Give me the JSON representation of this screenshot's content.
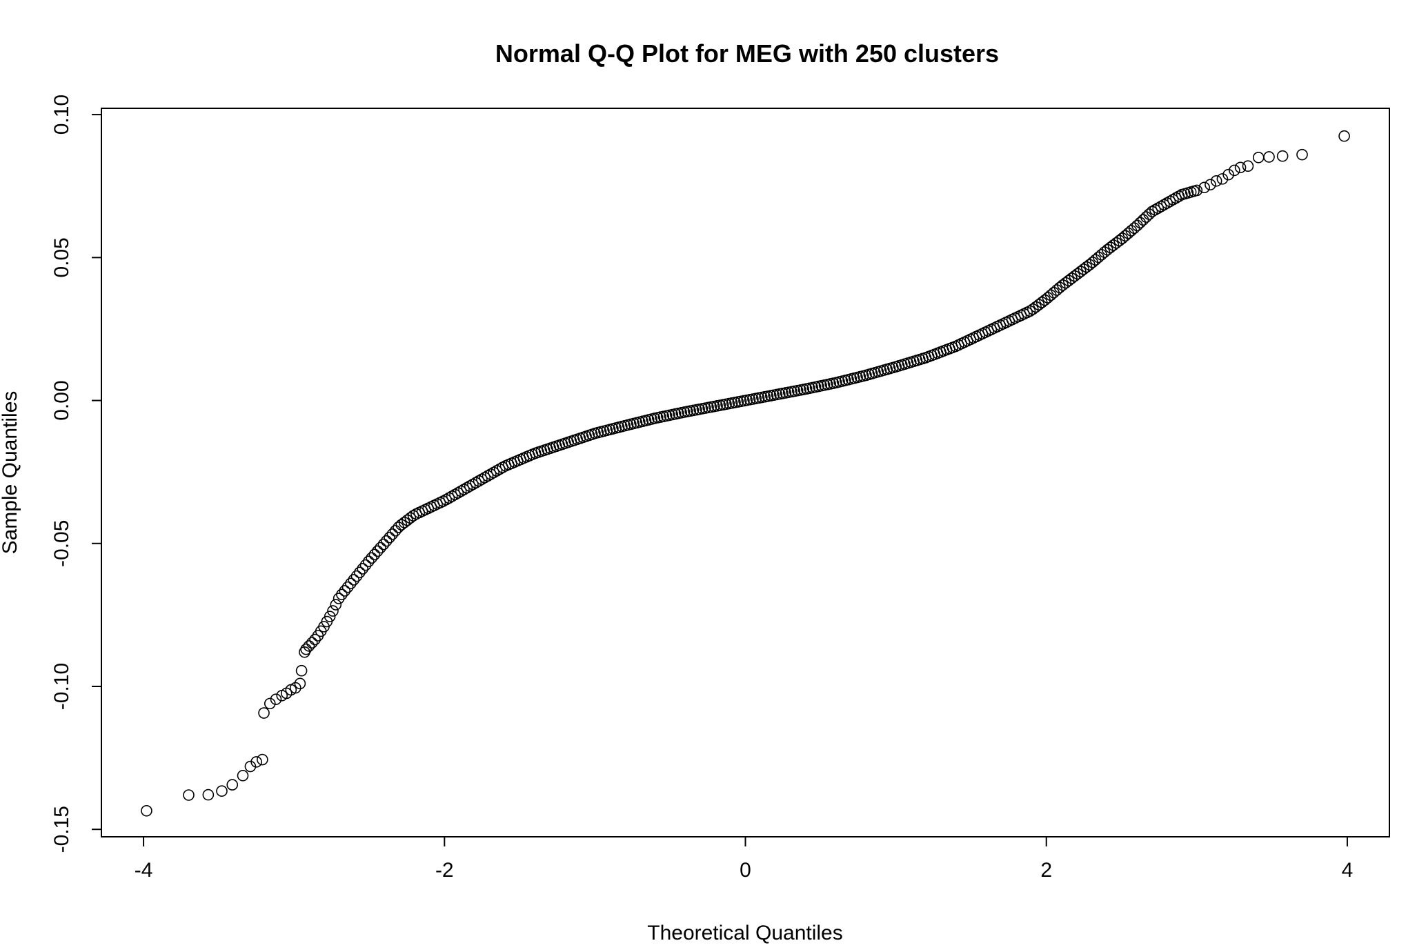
{
  "chart_data": {
    "type": "scatter",
    "title": "Normal Q-Q Plot for MEG with 250 clusters",
    "xlabel": "Theoretical Quantiles",
    "ylabel": "Sample Quantiles",
    "xlim": [
      -4.28,
      4.28
    ],
    "ylim": [
      -0.1526,
      0.1022
    ],
    "x_ticks": [
      -4,
      -2,
      0,
      2,
      4
    ],
    "x_tick_labels": [
      "-4",
      "-2",
      "0",
      "2",
      "4"
    ],
    "y_ticks": [
      -0.15,
      -0.1,
      -0.05,
      0.0,
      0.05,
      0.1
    ],
    "y_tick_labels": [
      "-0.15",
      "-0.10",
      "-0.05",
      "0.00",
      "0.05",
      "0.10"
    ],
    "grid": false,
    "legend": "none",
    "marker": "open-circle",
    "colors": {
      "points": "#000000",
      "axes": "#000000",
      "background": "#ffffff"
    },
    "tail_points": {
      "x": [
        -3.98,
        -3.7,
        -3.57,
        -3.48,
        -3.41,
        -3.34,
        -3.29,
        -3.25,
        -3.21,
        -3.2,
        -3.16,
        -3.12,
        -3.08,
        -3.05,
        -3.02,
        -2.99,
        -2.96,
        -2.95,
        -2.93,
        3.05,
        3.09,
        3.13,
        3.17,
        3.21,
        3.25,
        3.29,
        3.34,
        3.41,
        3.48,
        3.57,
        3.7,
        3.98
      ],
      "y": [
        -0.1435,
        -0.138,
        -0.1379,
        -0.1366,
        -0.1344,
        -0.1312,
        -0.128,
        -0.1264,
        -0.1256,
        -0.1093,
        -0.106,
        -0.1045,
        -0.1032,
        -0.1024,
        -0.1012,
        -0.1005,
        -0.099,
        -0.0945,
        -0.088,
        0.0745,
        0.0755,
        0.0768,
        0.0775,
        0.079,
        0.0805,
        0.0815,
        0.082,
        0.085,
        0.0852,
        0.0855,
        0.086,
        0.0925
      ]
    },
    "body_curve": {
      "x": [
        -2.92,
        -2.85,
        -2.8,
        -2.75,
        -2.7,
        -2.6,
        -2.5,
        -2.4,
        -2.3,
        -2.2,
        -2.1,
        -2.0,
        -1.8,
        -1.6,
        -1.4,
        -1.2,
        -1.0,
        -0.8,
        -0.6,
        -0.4,
        -0.2,
        0.0,
        0.2,
        0.4,
        0.6,
        0.8,
        1.0,
        1.2,
        1.4,
        1.6,
        1.8,
        1.9,
        2.0,
        2.1,
        2.2,
        2.3,
        2.4,
        2.5,
        2.6,
        2.7,
        2.8,
        2.9,
        3.0
      ],
      "y": [
        -0.087,
        -0.083,
        -0.079,
        -0.0745,
        -0.069,
        -0.0625,
        -0.056,
        -0.05,
        -0.044,
        -0.04,
        -0.0375,
        -0.035,
        -0.029,
        -0.023,
        -0.0185,
        -0.015,
        -0.0115,
        -0.0088,
        -0.0062,
        -0.004,
        -0.002,
        0.0,
        0.002,
        0.004,
        0.0062,
        0.0088,
        0.0118,
        0.015,
        0.019,
        0.024,
        0.029,
        0.0315,
        0.0355,
        0.04,
        0.044,
        0.048,
        0.0525,
        0.0565,
        0.061,
        0.066,
        0.069,
        0.072,
        0.0735
      ],
      "sample_count": 300
    }
  }
}
